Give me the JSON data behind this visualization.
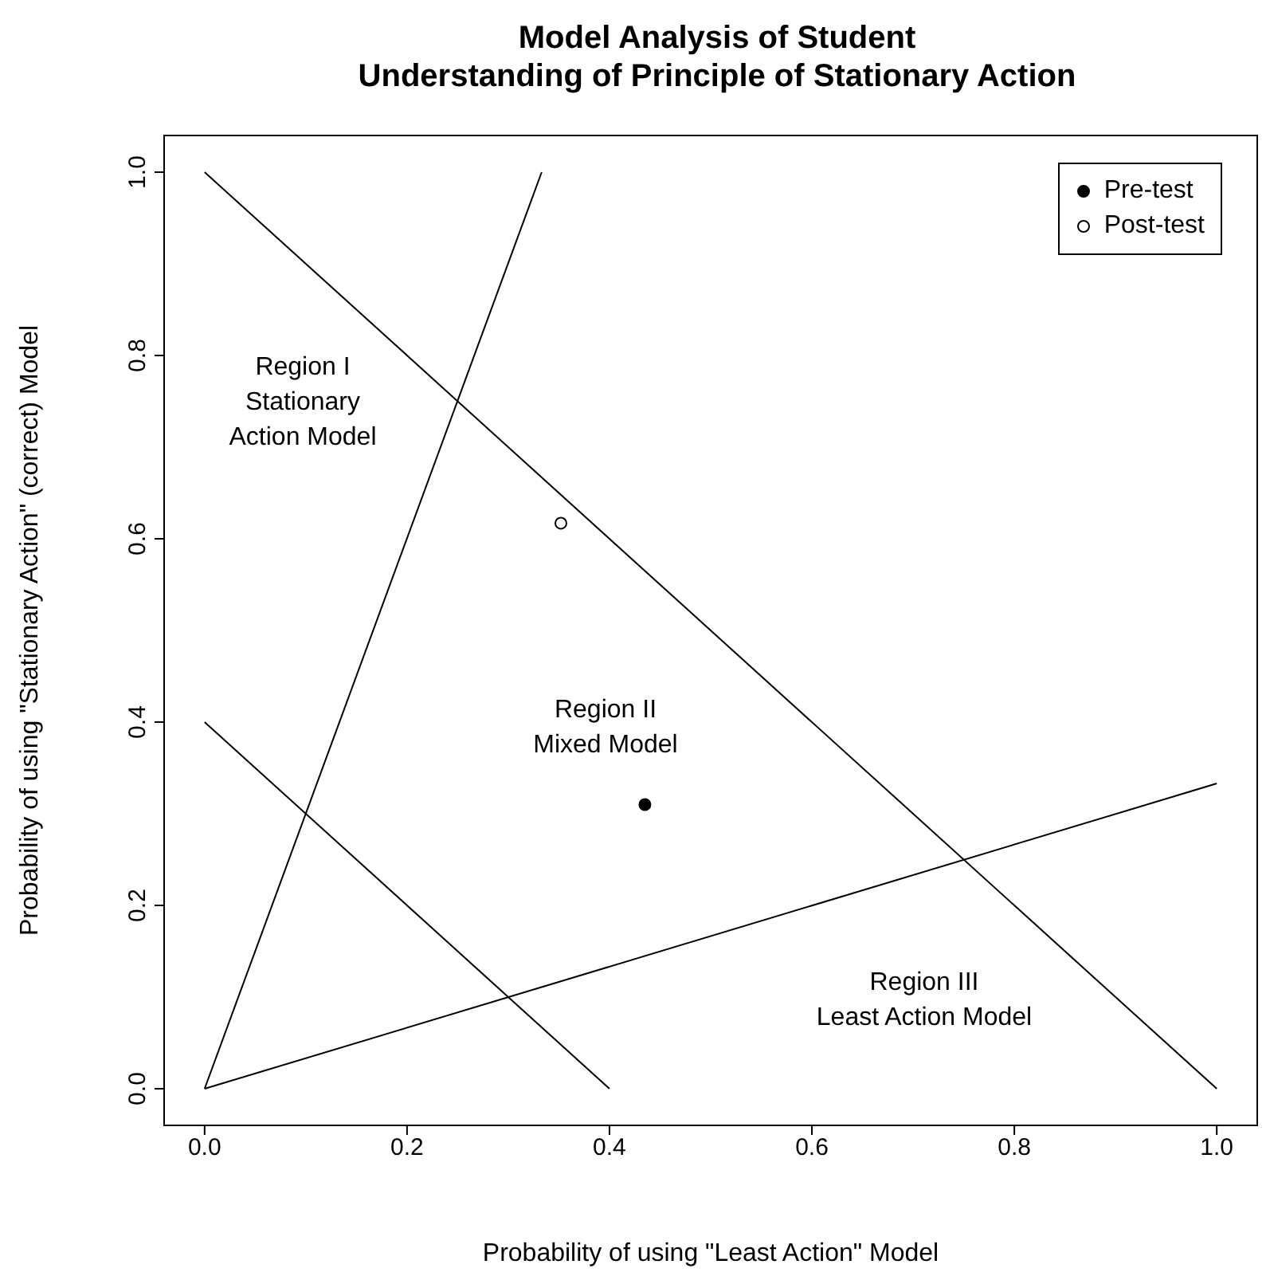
{
  "chart_data": {
    "type": "scatter",
    "title": "Model Analysis of Student\nUnderstanding of Principle of Stationary Action",
    "xlabel": "Probability of using \"Least Action\" Model",
    "ylabel": "Probability of using \"Stationary Action\" (correct) Model",
    "xlim": [
      -0.04,
      1.04
    ],
    "ylim": [
      -0.04,
      1.04
    ],
    "xticks": [
      {
        "value": 0,
        "label": "0.0"
      },
      0.2,
      0.4,
      0.6,
      0.8,
      {
        "value": 1,
        "label": "1.0"
      }
    ],
    "yticks": [
      {
        "value": 0,
        "label": "0.0"
      },
      0.2,
      0.4,
      0.6,
      0.8,
      {
        "value": 1,
        "label": "1.0"
      }
    ],
    "grid": false,
    "legend": "top right",
    "series": [
      {
        "type": "line",
        "color": "#000000",
        "marker": "none",
        "x": [
          0,
          0.333
        ],
        "values": [
          0,
          1
        ]
      },
      {
        "type": "line",
        "color": "#000000",
        "marker": "none",
        "x": [
          0,
          1
        ],
        "values": [
          1,
          0
        ]
      },
      {
        "type": "line",
        "color": "#000000",
        "marker": "none",
        "x": [
          0,
          1
        ],
        "values": [
          0,
          0.333
        ]
      },
      {
        "type": "line",
        "color": "#000000",
        "marker": "none",
        "x": [
          0,
          0.4
        ],
        "values": [
          0.4,
          0
        ]
      },
      {
        "name": "Pre-test",
        "color": "#000000",
        "marker": "circle",
        "x": [
          0.435
        ],
        "values": [
          0.31
        ]
      },
      {
        "name": "Post-test",
        "color": "#ffffff",
        "marker": "circle",
        "x": [
          0.352
        ],
        "values": [
          0.617
        ]
      }
    ],
    "annotations": [
      "Region I\nStationary\nAction Model",
      "Region II\nMixed Model",
      "Region III\nLeast Action Model"
    ]
  }
}
